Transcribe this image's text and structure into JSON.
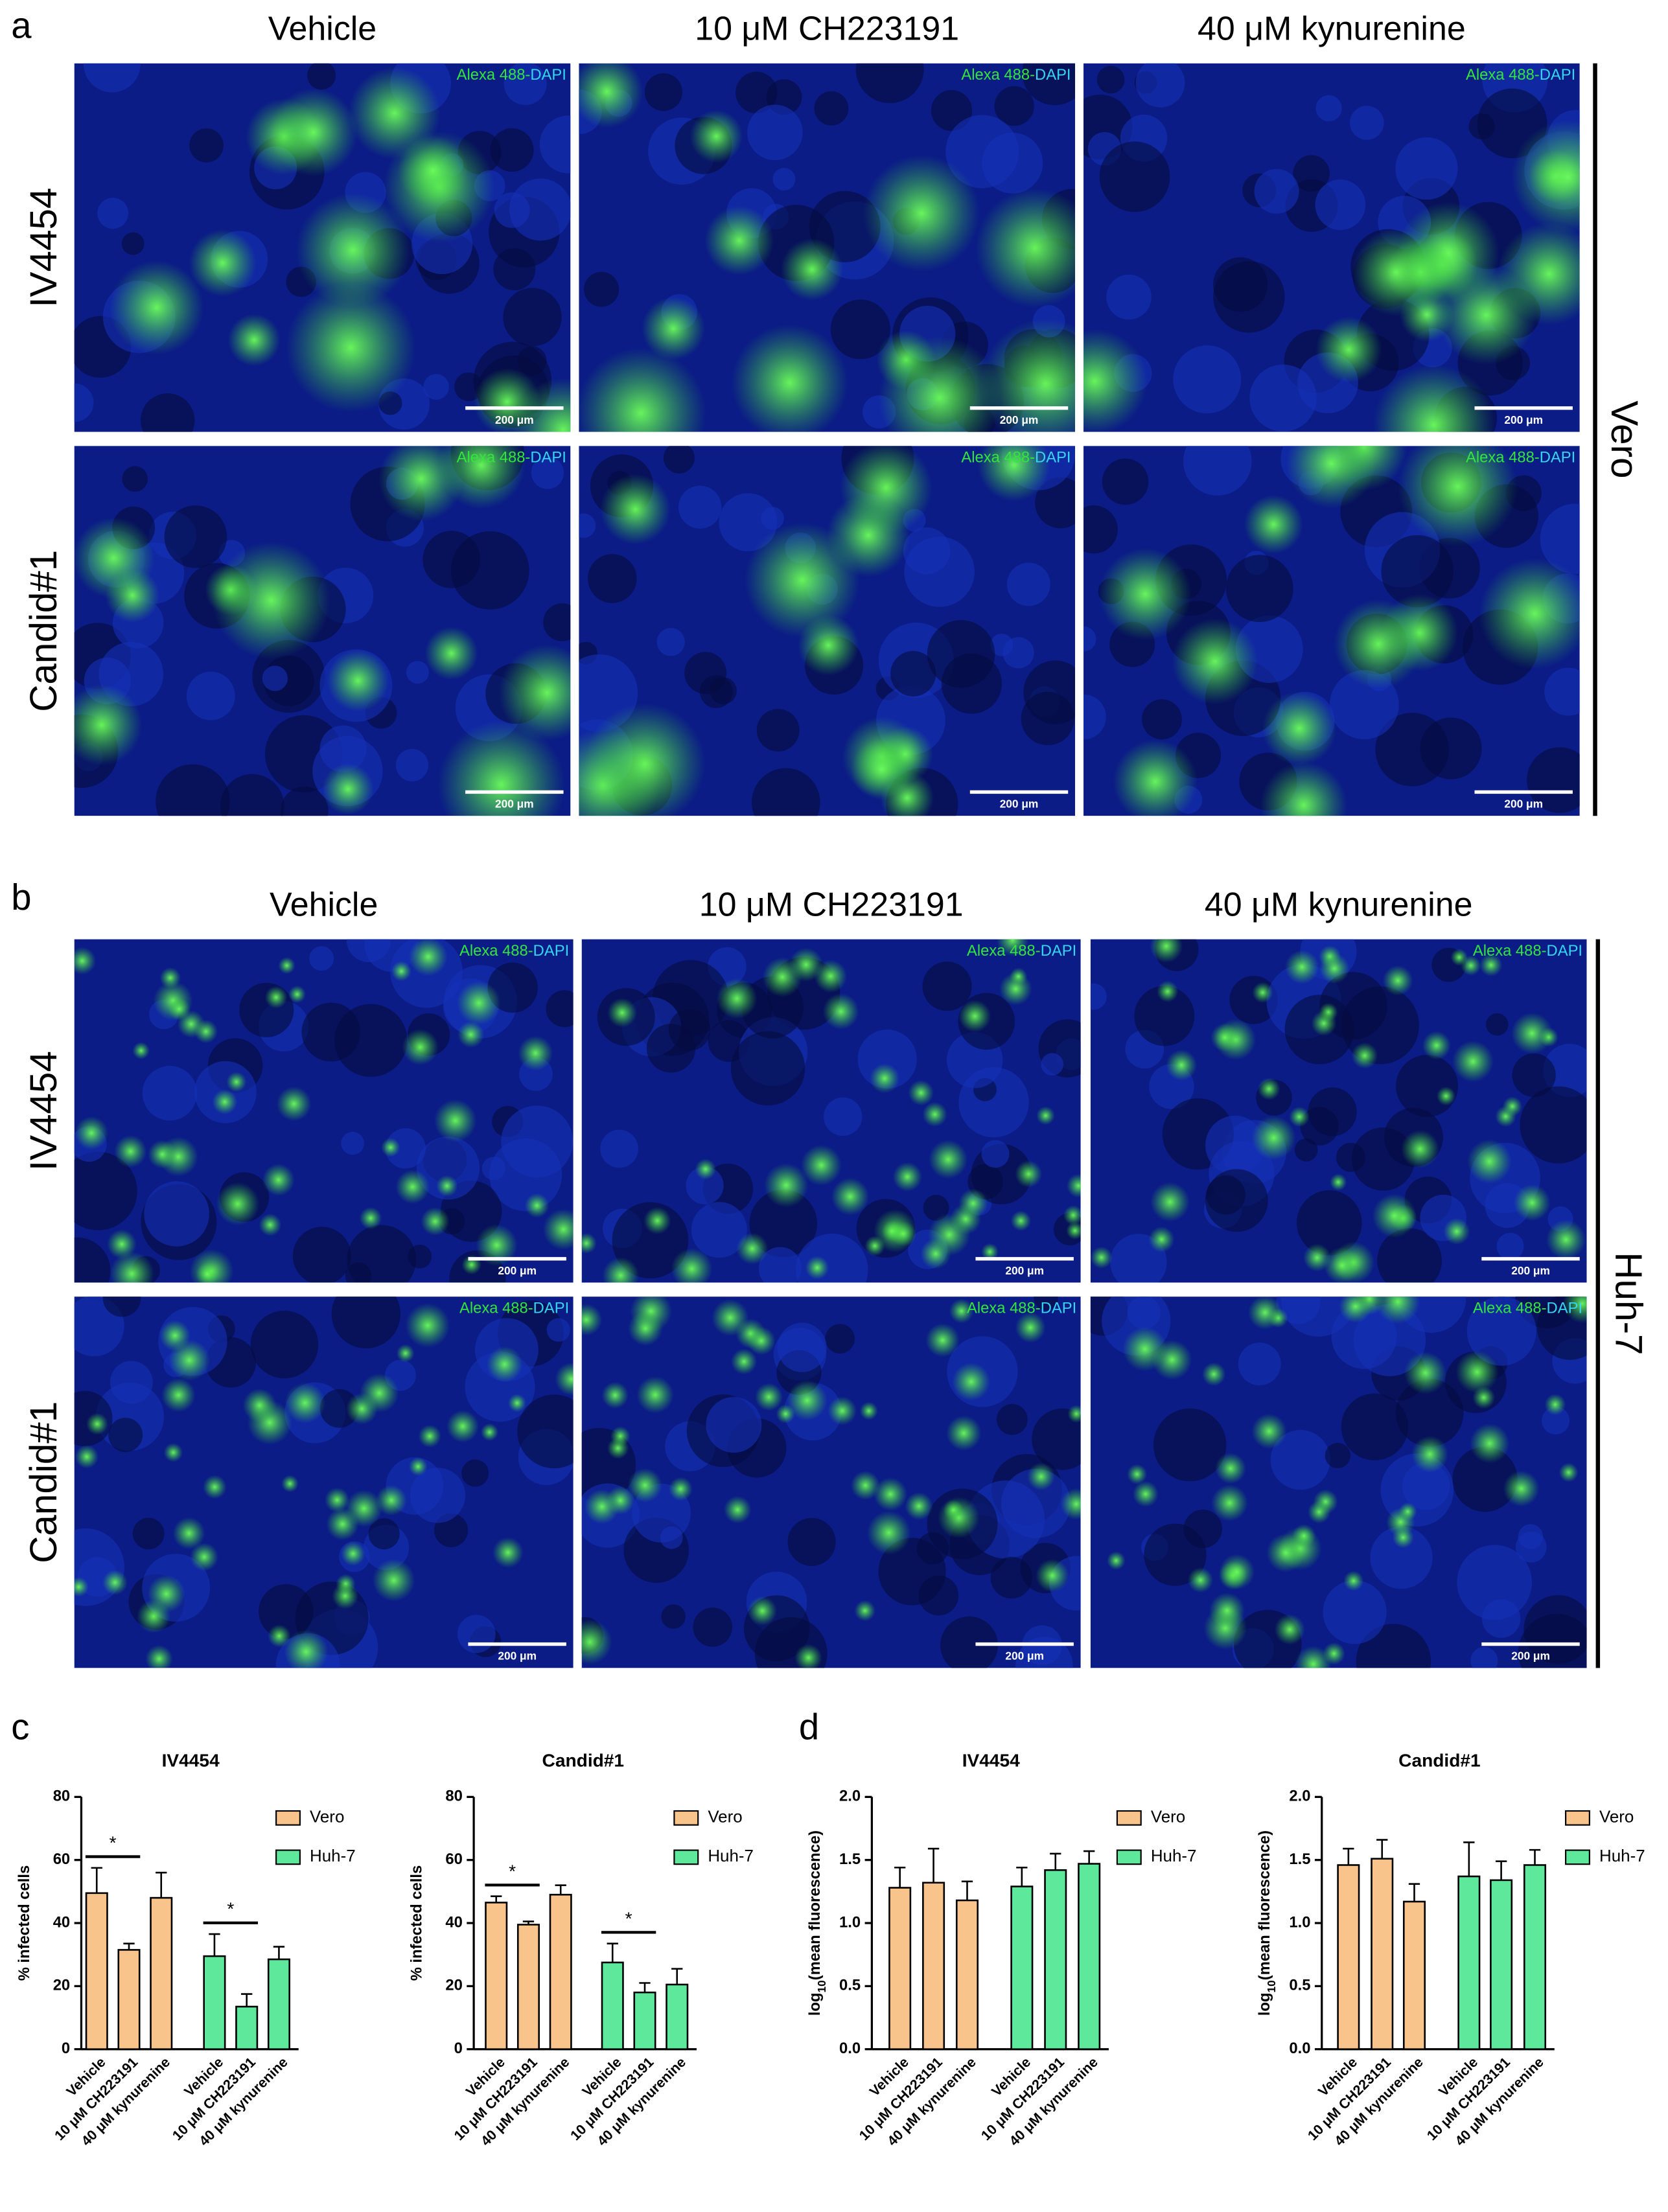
{
  "figure_labels": [
    "a",
    "b",
    "c",
    "d"
  ],
  "micrographs": [
    {
      "columns": [
        "Vehicle",
        "10 μM CH223191",
        "40 μM kynurenine"
      ],
      "rows": [
        "IV4454",
        "Candid#1"
      ],
      "cell_line": "Vero",
      "stain": [
        "Alexa 488-",
        "DAPI"
      ],
      "scale_bar": "200 μm"
    },
    {
      "columns": [
        "Vehicle",
        "10 μM CH223191",
        "40 μM kynurenine"
      ],
      "rows": [
        "IV4454",
        "Candid#1"
      ],
      "cell_line": "Huh-7",
      "stain": [
        "Alexa 488-",
        "DAPI"
      ],
      "scale_bar": "200 μm"
    }
  ],
  "chart_data": [
    {
      "type": "bar",
      "title": "IV4454",
      "y_label": [
        "% infected cells"
      ],
      "categories": [
        "Vehicle",
        "10 μM CH223191",
        "40 μM kynurenine"
      ],
      "series": [
        {
          "name": "Vero",
          "color": "#f9c38c",
          "values": [
            49.5,
            31.5,
            48
          ],
          "errors": [
            8,
            2,
            8
          ]
        },
        {
          "name": "Huh-7",
          "color": "#5ee89b",
          "values": [
            29.5,
            13.5,
            28.5
          ],
          "errors": [
            7,
            4,
            4
          ]
        }
      ],
      "ylim": [
        0,
        80
      ],
      "yticks": [
        0,
        20,
        40,
        60,
        80
      ],
      "significance": [
        {
          "label": "*",
          "series": 0,
          "categories": [
            0,
            1
          ]
        },
        {
          "label": "*",
          "series": 1,
          "categories": [
            0,
            1
          ]
        }
      ]
    },
    {
      "type": "bar",
      "title": "Candid#1",
      "y_label": [
        "% infected cells"
      ],
      "categories": [
        "Vehicle",
        "10 μM CH223191",
        "40 μM kynurenine"
      ],
      "series": [
        {
          "name": "Vero",
          "color": "#f9c38c",
          "values": [
            46.5,
            39.5,
            49
          ],
          "errors": [
            2,
            1,
            3
          ]
        },
        {
          "name": "Huh-7",
          "color": "#5ee89b",
          "values": [
            27.5,
            18,
            20.5
          ],
          "errors": [
            6,
            3,
            5
          ]
        }
      ],
      "ylim": [
        0,
        80
      ],
      "yticks": [
        0,
        20,
        40,
        60,
        80
      ],
      "significance": [
        {
          "label": "*",
          "series": 0,
          "categories": [
            0,
            1
          ]
        },
        {
          "label": "*",
          "series": 1,
          "categories": [
            0,
            1
          ]
        }
      ]
    },
    {
      "type": "bar",
      "title": "IV4454",
      "y_label": [
        "log",
        "10",
        "(mean fluorescence)"
      ],
      "categories": [
        "Vehicle",
        "10 μM CH223191",
        "40 μM kynurenine"
      ],
      "series": [
        {
          "name": "Vero",
          "color": "#f9c38c",
          "values": [
            1.28,
            1.32,
            1.18
          ],
          "errors": [
            0.16,
            0.27,
            0.15
          ]
        },
        {
          "name": "Huh-7",
          "color": "#5ee89b",
          "values": [
            1.29,
            1.42,
            1.47
          ],
          "errors": [
            0.15,
            0.13,
            0.1
          ]
        }
      ],
      "ylim": [
        0,
        2
      ],
      "yticks": [
        {
          "value": 0,
          "label": "0.0"
        },
        0.5,
        {
          "value": 1,
          "label": "1.0"
        },
        1.5,
        {
          "value": 2,
          "label": "2.0"
        }
      ]
    },
    {
      "type": "bar",
      "title": "Candid#1",
      "y_label": [
        "log",
        "10",
        "(mean fluorescence)"
      ],
      "categories": [
        "Vehicle",
        "10 μM CH223191",
        "40 μM kynurenine"
      ],
      "series": [
        {
          "name": "Vero",
          "color": "#f9c38c",
          "values": [
            1.46,
            1.51,
            1.17
          ],
          "errors": [
            0.13,
            0.15,
            0.14
          ]
        },
        {
          "name": "Huh-7",
          "color": "#5ee89b",
          "values": [
            1.37,
            1.34,
            1.46
          ],
          "errors": [
            0.27,
            0.15,
            0.12
          ]
        }
      ],
      "ylim": [
        0,
        2
      ],
      "yticks": [
        {
          "value": 0,
          "label": "0.0"
        },
        0.5,
        {
          "value": 1,
          "label": "1.0"
        },
        1.5,
        {
          "value": 2,
          "label": "2.0"
        }
      ]
    }
  ]
}
